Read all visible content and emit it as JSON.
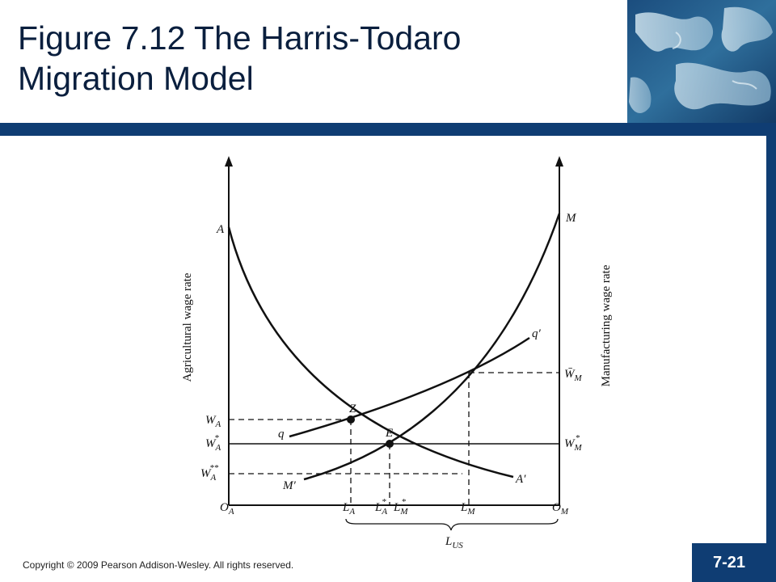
{
  "slide": {
    "title_line1": "Figure 7.12 The Harris-Todaro",
    "title_line2": "Migration Model",
    "copyright": "Copyright © 2009 Pearson Addison-Wesley. All rights reserved.",
    "slide_number": "7-21"
  },
  "diagram": {
    "left_axis_title": "Agricultural wage rate",
    "right_axis_title": "Manufacturing wage rate",
    "curve_labels": {
      "A": "A",
      "A_prime": "A′",
      "M": "M",
      "M_prime": "M′",
      "q": "q",
      "q_prime": "q′"
    },
    "point_labels": {
      "Z": "Z",
      "E": "E"
    },
    "left_wage_labels": {
      "WA": {
        "base": "W",
        "sub": "A",
        "sup": ""
      },
      "WA_star": {
        "base": "W",
        "sub": "A",
        "sup": "*"
      },
      "WA_star_star": {
        "base": "W",
        "sub": "A",
        "sup": "**"
      }
    },
    "right_wage_labels": {
      "WM_bar": {
        "base": "W̄",
        "sub": "M",
        "sup": ""
      },
      "WM_star": {
        "base": "W",
        "sub": "M",
        "sup": "*"
      }
    },
    "bottom_labels": {
      "OA": {
        "base": "O",
        "sub": "A"
      },
      "LA": {
        "base": "L",
        "sub": "A"
      },
      "LA_star": {
        "base": "L",
        "sub": "A",
        "sup": "*"
      },
      "LM_star": {
        "base": "L",
        "sub": "M",
        "sup": "*"
      },
      "LM": {
        "base": "L",
        "sub": "M"
      },
      "OM": {
        "base": "O",
        "sub": "M"
      },
      "LUS": {
        "base": "L",
        "sub": "US"
      }
    }
  },
  "colors": {
    "navy": "#0f3d73",
    "title_text": "#0a1f3e",
    "diagram_ink": "#111111"
  }
}
